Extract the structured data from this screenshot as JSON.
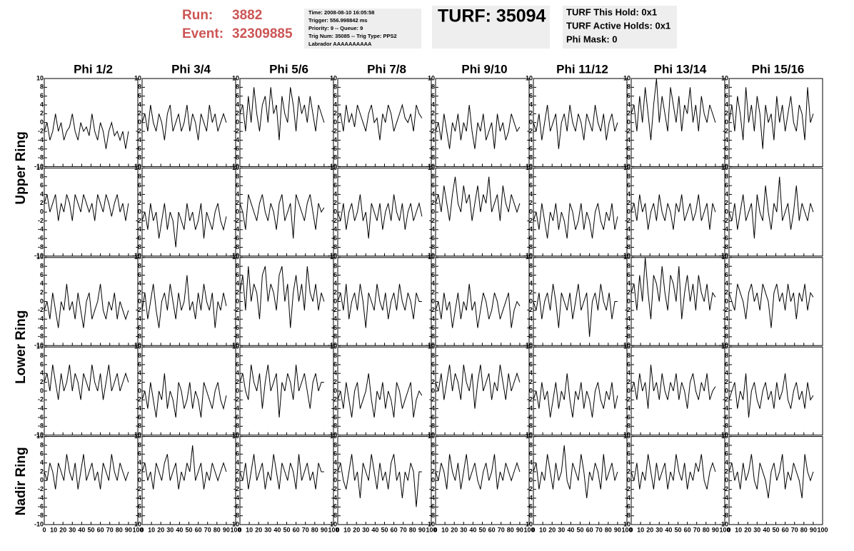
{
  "header": {
    "run_label": "Run:",
    "run": "3882",
    "event_label": "Event:",
    "event": "32309885",
    "info": [
      "Time: 2008-08-10 16:05:58",
      "Trigger: 556.998842 ms",
      "Priority: 9 -- Queue: 9",
      "Trig Num: 35085 -- Trig Type: PPS2",
      "Labrador AAAAAAAAAA"
    ],
    "turf": "TURF: 35094",
    "turf_info": [
      "TURF This Hold: 0x1",
      "TURF Active Holds: 0x1",
      "Phi Mask: 0"
    ]
  },
  "columns": [
    "Phi 1/2",
    "Phi 3/4",
    "Phi 5/6",
    "Phi 7/8",
    "Phi 9/10",
    "Phi 11/12",
    "Phi 13/14",
    "Phi 15/16"
  ],
  "rows": [
    "Upper Ring",
    "Lower Ring",
    "Nadir Ring"
  ],
  "axes": {
    "xlim": [
      0,
      100
    ],
    "xticks": [
      0,
      10,
      20,
      30,
      40,
      50,
      60,
      70,
      80,
      90,
      100
    ],
    "ylim": [
      -10,
      10
    ],
    "yticks": [
      -10,
      -8,
      -6,
      -4,
      -2,
      0,
      2,
      4,
      6,
      8,
      10
    ],
    "x": [
      0,
      3,
      6,
      9,
      12,
      15,
      18,
      21,
      24,
      27,
      30,
      33,
      36,
      39,
      42,
      45,
      48,
      51,
      54,
      57,
      60,
      63,
      66,
      69,
      72,
      75,
      78,
      81,
      84,
      87,
      90
    ]
  },
  "chart_data": [
    {
      "type": "line",
      "values": [
        -2,
        0,
        -4,
        -2,
        2,
        -2,
        0,
        -4,
        -2,
        -1,
        2,
        -2,
        -4,
        0,
        -2,
        -1,
        -3,
        2,
        -2,
        -4,
        0,
        -2,
        -6,
        -2,
        0,
        -3,
        -2,
        -4,
        -2,
        -6,
        -2
      ]
    },
    {
      "type": "line",
      "values": [
        0,
        2,
        -2,
        4,
        0,
        -2,
        2,
        0,
        -4,
        2,
        4,
        -2,
        0,
        2,
        -2,
        0,
        4,
        -2,
        2,
        0,
        -4,
        2,
        0,
        -2,
        4,
        0,
        2,
        -2,
        0,
        2,
        0
      ]
    },
    {
      "type": "line",
      "values": [
        2,
        4,
        -2,
        6,
        0,
        8,
        2,
        -2,
        4,
        6,
        0,
        8,
        2,
        4,
        -4,
        6,
        2,
        0,
        8,
        4,
        -2,
        6,
        2,
        4,
        0,
        6,
        2,
        -2,
        4,
        2,
        0
      ]
    },
    {
      "type": "line",
      "values": [
        1,
        2,
        -2,
        4,
        0,
        2,
        -1,
        4,
        2,
        0,
        -2,
        2,
        4,
        0,
        1,
        -4,
        2,
        0,
        4,
        2,
        -2,
        0,
        2,
        4,
        1,
        0,
        2,
        -2,
        4,
        2,
        1
      ]
    },
    {
      "type": "line",
      "values": [
        -2,
        0,
        -4,
        2,
        -2,
        -6,
        0,
        -2,
        2,
        -4,
        0,
        -2,
        4,
        -2,
        -6,
        0,
        -2,
        2,
        -4,
        -2,
        0,
        -6,
        2,
        -2,
        0,
        -4,
        -2,
        2,
        0,
        -2,
        -1
      ]
    },
    {
      "type": "line",
      "values": [
        0,
        -2,
        2,
        -4,
        0,
        4,
        -2,
        0,
        2,
        -6,
        0,
        2,
        -2,
        4,
        0,
        -2,
        2,
        0,
        -4,
        2,
        0,
        -2,
        4,
        0,
        -2,
        2,
        -4,
        0,
        2,
        -2,
        0
      ]
    },
    {
      "type": "line",
      "values": [
        2,
        4,
        -2,
        6,
        0,
        8,
        2,
        -4,
        4,
        10,
        0,
        6,
        2,
        -2,
        8,
        4,
        0,
        6,
        -2,
        4,
        2,
        8,
        0,
        4,
        -2,
        6,
        2,
        0,
        4,
        2,
        0
      ]
    },
    {
      "type": "line",
      "values": [
        0,
        4,
        -2,
        6,
        2,
        -4,
        8,
        0,
        4,
        -2,
        6,
        2,
        -6,
        4,
        0,
        2,
        -4,
        6,
        0,
        4,
        -2,
        2,
        6,
        0,
        -2,
        4,
        2,
        -4,
        8,
        0,
        2
      ]
    },
    {
      "type": "line",
      "values": [
        2,
        4,
        0,
        2,
        4,
        -2,
        2,
        0,
        4,
        2,
        -2,
        4,
        2,
        0,
        4,
        2,
        0,
        2,
        -2,
        4,
        2,
        0,
        4,
        2,
        -1,
        2,
        4,
        0,
        2,
        -2,
        2
      ]
    },
    {
      "type": "line",
      "values": [
        -2,
        0,
        -4,
        2,
        -2,
        0,
        -6,
        -2,
        2,
        -4,
        0,
        -2,
        -8,
        0,
        -2,
        -4,
        2,
        -2,
        0,
        -4,
        -2,
        2,
        -6,
        0,
        -2,
        -4,
        0,
        2,
        -2,
        -4,
        -1
      ]
    },
    {
      "type": "line",
      "values": [
        2,
        0,
        -4,
        4,
        2,
        0,
        -2,
        2,
        4,
        0,
        -2,
        2,
        0,
        -4,
        2,
        4,
        -2,
        0,
        2,
        -6,
        4,
        2,
        0,
        -2,
        2,
        4,
        0,
        -4,
        2,
        0,
        1
      ]
    },
    {
      "type": "line",
      "values": [
        0,
        -2,
        2,
        -4,
        0,
        2,
        -2,
        0,
        4,
        -2,
        0,
        -6,
        2,
        0,
        -2,
        2,
        -4,
        0,
        2,
        -2,
        4,
        0,
        -2,
        2,
        -4,
        0,
        2,
        -2,
        0,
        2,
        -1
      ]
    },
    {
      "type": "line",
      "values": [
        2,
        4,
        0,
        6,
        2,
        -2,
        4,
        8,
        2,
        0,
        6,
        2,
        4,
        -2,
        2,
        6,
        0,
        4,
        2,
        8,
        0,
        2,
        4,
        -2,
        6,
        2,
        0,
        4,
        2,
        0,
        2
      ]
    },
    {
      "type": "line",
      "values": [
        -2,
        0,
        -4,
        2,
        -2,
        -6,
        0,
        -2,
        2,
        -4,
        0,
        -2,
        -6,
        2,
        0,
        -4,
        -2,
        2,
        -4,
        0,
        -2,
        -6,
        0,
        2,
        -2,
        -4,
        0,
        -2,
        2,
        -4,
        -1
      ]
    },
    {
      "type": "line",
      "values": [
        0,
        2,
        -2,
        4,
        0,
        2,
        -4,
        0,
        2,
        -2,
        4,
        0,
        -2,
        2,
        0,
        -4,
        2,
        0,
        4,
        -2,
        0,
        2,
        -2,
        0,
        4,
        -2,
        0,
        2,
        -4,
        2,
        0
      ]
    },
    {
      "type": "line",
      "values": [
        0,
        -2,
        2,
        -4,
        0,
        4,
        -2,
        0,
        2,
        -6,
        4,
        0,
        -2,
        6,
        0,
        -4,
        2,
        0,
        8,
        -2,
        0,
        2,
        -4,
        0,
        6,
        -2,
        2,
        0,
        -2,
        2,
        0
      ]
    },
    {
      "type": "line",
      "values": [
        -2,
        0,
        -4,
        2,
        -2,
        -6,
        0,
        -2,
        4,
        -2,
        0,
        -4,
        2,
        -2,
        -6,
        0,
        2,
        -4,
        -2,
        0,
        4,
        -2,
        -4,
        0,
        -2,
        2,
        -4,
        0,
        -2,
        -4,
        -2
      ]
    },
    {
      "type": "line",
      "values": [
        -2,
        2,
        -4,
        0,
        4,
        -2,
        -6,
        0,
        2,
        -2,
        4,
        0,
        -4,
        2,
        -2,
        0,
        6,
        -2,
        0,
        -4,
        2,
        -2,
        4,
        0,
        -2,
        2,
        -6,
        0,
        -2,
        2,
        -1
      ]
    },
    {
      "type": "line",
      "values": [
        2,
        6,
        -2,
        8,
        0,
        4,
        2,
        -4,
        6,
        8,
        0,
        4,
        2,
        -2,
        6,
        8,
        0,
        4,
        -6,
        2,
        6,
        0,
        4,
        -2,
        8,
        2,
        0,
        4,
        -2,
        2,
        0
      ]
    },
    {
      "type": "line",
      "values": [
        0,
        2,
        -2,
        4,
        -4,
        0,
        2,
        -2,
        4,
        0,
        -6,
        2,
        0,
        -2,
        4,
        0,
        -2,
        2,
        -4,
        0,
        2,
        -2,
        4,
        0,
        -2,
        2,
        0,
        -4,
        2,
        0,
        0
      ]
    },
    {
      "type": "line",
      "values": [
        -2,
        0,
        -4,
        2,
        -2,
        0,
        -6,
        -2,
        2,
        -4,
        0,
        -2,
        4,
        -2,
        0,
        -6,
        -2,
        2,
        0,
        -4,
        -2,
        2,
        0,
        -4,
        -2,
        0,
        2,
        -6,
        -2,
        0,
        -1
      ]
    },
    {
      "type": "line",
      "values": [
        0,
        -2,
        2,
        -4,
        0,
        2,
        -2,
        4,
        0,
        -6,
        2,
        0,
        -2,
        2,
        -4,
        0,
        4,
        -2,
        0,
        2,
        -8,
        0,
        2,
        -2,
        4,
        0,
        -2,
        2,
        -4,
        0,
        0
      ]
    },
    {
      "type": "line",
      "values": [
        2,
        4,
        -2,
        6,
        0,
        10,
        2,
        -4,
        6,
        4,
        0,
        8,
        2,
        -2,
        6,
        4,
        0,
        8,
        -4,
        2,
        6,
        0,
        4,
        -2,
        6,
        2,
        0,
        4,
        -2,
        2,
        1
      ]
    },
    {
      "type": "line",
      "values": [
        2,
        0,
        -2,
        4,
        2,
        0,
        -4,
        2,
        4,
        0,
        2,
        -2,
        4,
        2,
        0,
        -6,
        2,
        4,
        0,
        2,
        -2,
        4,
        0,
        2,
        -4,
        2,
        0,
        4,
        -2,
        2,
        1
      ]
    },
    {
      "type": "line",
      "values": [
        2,
        4,
        0,
        6,
        2,
        -2,
        4,
        0,
        2,
        6,
        0,
        4,
        2,
        -2,
        4,
        2,
        0,
        6,
        2,
        0,
        4,
        -2,
        2,
        6,
        0,
        2,
        4,
        0,
        2,
        4,
        2
      ]
    },
    {
      "type": "line",
      "values": [
        -2,
        0,
        -4,
        2,
        -2,
        -6,
        0,
        -2,
        4,
        -4,
        0,
        -2,
        -6,
        2,
        0,
        -4,
        -2,
        2,
        -4,
        0,
        -2,
        -6,
        2,
        0,
        -2,
        -4,
        0,
        2,
        -2,
        -4,
        -1
      ]
    },
    {
      "type": "line",
      "values": [
        2,
        4,
        0,
        -2,
        6,
        2,
        0,
        4,
        -4,
        2,
        6,
        0,
        2,
        4,
        -6,
        2,
        0,
        4,
        2,
        -2,
        6,
        0,
        2,
        4,
        0,
        -4,
        2,
        4,
        0,
        2,
        2
      ]
    },
    {
      "type": "line",
      "values": [
        -2,
        0,
        -4,
        2,
        -2,
        -6,
        0,
        2,
        -4,
        -2,
        0,
        4,
        -2,
        -6,
        0,
        -2,
        2,
        -4,
        0,
        -2,
        -6,
        2,
        0,
        -4,
        -2,
        0,
        2,
        -6,
        -2,
        0,
        -1
      ]
    },
    {
      "type": "line",
      "values": [
        2,
        0,
        4,
        -2,
        2,
        6,
        0,
        4,
        2,
        -2,
        6,
        2,
        0,
        4,
        -4,
        2,
        6,
        0,
        2,
        4,
        -2,
        2,
        0,
        6,
        2,
        -2,
        4,
        0,
        2,
        4,
        2
      ]
    },
    {
      "type": "line",
      "values": [
        -2,
        0,
        -4,
        2,
        -2,
        0,
        -6,
        -2,
        2,
        -4,
        0,
        -2,
        4,
        -2,
        -6,
        0,
        -2,
        2,
        -4,
        0,
        -2,
        -6,
        0,
        2,
        -2,
        -4,
        0,
        -2,
        2,
        -4,
        -1
      ]
    },
    {
      "type": "line",
      "values": [
        0,
        2,
        -2,
        4,
        0,
        2,
        -4,
        6,
        0,
        2,
        -2,
        4,
        0,
        -2,
        2,
        0,
        4,
        -2,
        2,
        0,
        -4,
        2,
        4,
        0,
        -2,
        2,
        0,
        4,
        -2,
        0,
        1
      ]
    },
    {
      "type": "line",
      "values": [
        -2,
        0,
        2,
        -4,
        0,
        -2,
        4,
        -6,
        0,
        2,
        -2,
        -4,
        0,
        2,
        -2,
        0,
        -4,
        2,
        -2,
        0,
        4,
        -2,
        -4,
        0,
        2,
        -2,
        0,
        -4,
        2,
        -2,
        -1
      ]
    },
    {
      "type": "line",
      "values": [
        2,
        0,
        4,
        2,
        -2,
        4,
        2,
        0,
        6,
        2,
        0,
        4,
        -2,
        2,
        6,
        0,
        2,
        4,
        0,
        2,
        -2,
        4,
        2,
        0,
        6,
        2,
        0,
        4,
        2,
        0,
        2
      ]
    },
    {
      "type": "line",
      "values": [
        2,
        4,
        0,
        2,
        -2,
        4,
        2,
        0,
        4,
        6,
        0,
        2,
        4,
        -2,
        2,
        0,
        4,
        2,
        8,
        0,
        2,
        4,
        -2,
        2,
        0,
        4,
        2,
        0,
        2,
        4,
        2
      ]
    },
    {
      "type": "line",
      "values": [
        2,
        0,
        4,
        -2,
        2,
        6,
        0,
        2,
        4,
        -2,
        2,
        0,
        6,
        2,
        -2,
        4,
        2,
        0,
        4,
        2,
        -2,
        6,
        0,
        2,
        4,
        0,
        2,
        -2,
        4,
        2,
        2
      ]
    },
    {
      "type": "line",
      "values": [
        2,
        4,
        0,
        -2,
        2,
        6,
        0,
        2,
        -4,
        4,
        2,
        0,
        6,
        2,
        -2,
        4,
        0,
        2,
        -2,
        4,
        6,
        0,
        2,
        -4,
        2,
        0,
        4,
        2,
        -6,
        2,
        2
      ]
    },
    {
      "type": "line",
      "values": [
        2,
        0,
        4,
        2,
        -2,
        6,
        2,
        0,
        4,
        -2,
        2,
        6,
        0,
        2,
        4,
        0,
        -2,
        2,
        4,
        0,
        2,
        6,
        -2,
        2,
        0,
        4,
        2,
        0,
        2,
        4,
        2
      ]
    },
    {
      "type": "line",
      "values": [
        2,
        4,
        -2,
        2,
        0,
        6,
        2,
        -2,
        4,
        0,
        2,
        8,
        0,
        -2,
        4,
        2,
        0,
        6,
        2,
        -4,
        2,
        0,
        4,
        2,
        -2,
        6,
        0,
        2,
        4,
        0,
        2
      ]
    },
    {
      "type": "line",
      "values": [
        2,
        0,
        4,
        -2,
        2,
        0,
        6,
        2,
        -2,
        4,
        0,
        2,
        4,
        -2,
        2,
        0,
        6,
        2,
        0,
        4,
        -2,
        2,
        0,
        4,
        2,
        6,
        0,
        -2,
        2,
        4,
        2
      ]
    },
    {
      "type": "line",
      "values": [
        2,
        4,
        0,
        2,
        -2,
        4,
        0,
        2,
        6,
        0,
        -2,
        4,
        2,
        0,
        -4,
        2,
        4,
        0,
        2,
        6,
        -2,
        2,
        0,
        4,
        2,
        0,
        -4,
        6,
        2,
        0,
        2
      ]
    }
  ]
}
